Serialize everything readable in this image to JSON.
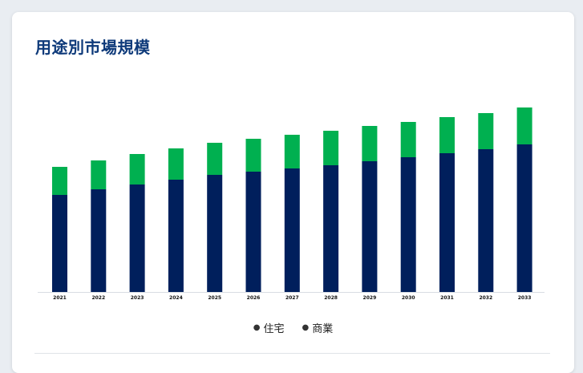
{
  "title": "用途別市場規模",
  "colors": {
    "residential": "#001f5c",
    "commercial": "#00b050",
    "title": "#0e3a7a"
  },
  "chart_data": {
    "type": "bar",
    "stacked": true,
    "categories": [
      "2021",
      "2022",
      "2023",
      "2024",
      "2025",
      "2026",
      "2027",
      "2028",
      "2029",
      "2030",
      "2031",
      "2032",
      "2033"
    ],
    "series": [
      {
        "name": "住宅",
        "color": "#001f5c",
        "values": [
          121,
          128,
          134,
          140,
          146,
          150,
          154,
          158,
          163,
          168,
          173,
          178,
          184
        ]
      },
      {
        "name": "商業",
        "color": "#00b050",
        "values": [
          35,
          36,
          38,
          39,
          40,
          41,
          42,
          43,
          44,
          44,
          45,
          45,
          46
        ]
      }
    ],
    "title": "",
    "xlabel": "",
    "ylabel": "",
    "ylim": [
      0,
      240
    ],
    "grid": false,
    "legend_position": "bottom"
  },
  "legend": [
    {
      "label": "住宅"
    },
    {
      "label": "商業"
    }
  ]
}
